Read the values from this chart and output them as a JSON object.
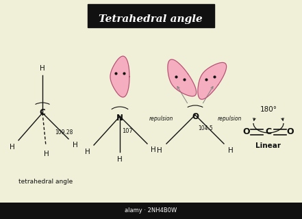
{
  "bg_color": "#f0f0d8",
  "title": "Tetrahedral angle",
  "title_bg": "#111111",
  "title_color": "#ffffff",
  "pink_color": "#f5aec0",
  "pink_edge": "#b05070",
  "line_color": "#111111",
  "dot_color": "#111111",
  "subtitle1": "tetrahedral angle",
  "angle1": "109.28",
  "angle2": "107",
  "angle3": "104.5",
  "angle4": "180°",
  "repulsion": "repulsion",
  "linear_label": "Linear"
}
